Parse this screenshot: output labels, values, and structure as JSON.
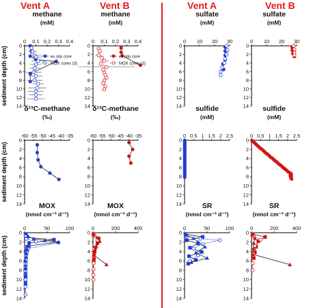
{
  "headers": {
    "vent_a_left": "Vent A",
    "vent_b_left": "Vent B",
    "vent_a_right": "Vent A",
    "vent_b_right": "Vent B"
  },
  "colors": {
    "vent_a": "#1f3fcf",
    "vent_b": "#d41414",
    "divider": "#e21b1b",
    "bars": "#666666"
  },
  "ylabel": "sediment depth (cm)",
  "chart_data": [
    {
      "id": "ch-methane-a",
      "type": "line",
      "title": "methane",
      "units": "(mM)",
      "xlim": [
        0,
        0.4
      ],
      "xticks": [
        "0",
        "0.1",
        "0.2",
        "0.3",
        "0.4"
      ],
      "ylim": [
        0,
        14
      ],
      "yticks": [
        "0",
        "2",
        "4",
        "6",
        "8",
        "10",
        "12",
        "14"
      ],
      "color": "vent_a",
      "legend": [
        "ex situ core",
        "MOX cores (3)"
      ],
      "series": [
        {
          "name": "ex situ core",
          "style": "filled",
          "x": [
            0.05,
            0.06,
            0.05,
            0.1,
            0.28,
            0.05,
            0.05
          ],
          "y": [
            0,
            1.2,
            2.4,
            3.2,
            3.6,
            6.5,
            8.3
          ]
        },
        {
          "name": "MOX cores (3)",
          "style": "open",
          "x": [
            0.06,
            0.07,
            0.09,
            0.1,
            0.12,
            0.1,
            0.09,
            0.08,
            0.1,
            0.09,
            0.12,
            0.11,
            0.1,
            0.1,
            0.1
          ],
          "y": [
            0.5,
            1.3,
            2.2,
            2.6,
            3.5,
            4.3,
            5.2,
            6.1,
            7.0,
            8.0,
            8.8,
            9.8,
            10.6,
            11.4,
            12.3
          ],
          "err": [
            0.02,
            0.04,
            0.06,
            0.05,
            0.06,
            0.05,
            0.05,
            0.07,
            0.06,
            0.07,
            0.05,
            0.08,
            0.07,
            0.06,
            0.08
          ]
        }
      ]
    },
    {
      "id": "ch-methane-b",
      "type": "line",
      "title": "methane",
      "units": "(mM)",
      "xlim": [
        0,
        0.4
      ],
      "xticks": [
        "0",
        "0.1",
        "0.2",
        "0.3",
        "0.4"
      ],
      "ylim": [
        0,
        14
      ],
      "yticks": [
        "0",
        "2",
        "4",
        "6",
        "8",
        "10",
        "12",
        "14"
      ],
      "color": "vent_b",
      "legend": [
        "ex situ core",
        "MOX cores (3)"
      ],
      "series": [
        {
          "name": "ex situ core",
          "style": "filled",
          "x": [
            0.25,
            0.25,
            0.26,
            0.42
          ],
          "y": [
            0.5,
            1.5,
            2.3,
            4.5
          ]
        },
        {
          "name": "MOX cores (3)",
          "style": "open",
          "x": [
            0.05,
            0.06,
            0.05,
            0.08,
            0.1,
            0.07,
            0.12,
            0.09,
            0.1,
            0.11,
            0.12,
            0.1,
            0.09,
            0.11,
            0.1
          ],
          "y": [
            0.6,
            1.2,
            2.2,
            2.8,
            3.5,
            4.2,
            4.9,
            5.5,
            6.2,
            6.8,
            7.4,
            8.0,
            8.7,
            9.4,
            10.1
          ],
          "err": [
            0,
            0,
            0.03,
            0,
            0.04,
            0,
            0.25,
            0,
            0,
            0,
            0,
            0,
            0,
            0,
            0
          ]
        }
      ]
    },
    {
      "id": "ch-sulfate-a",
      "type": "line",
      "title": "sulfate",
      "units": "(mM)",
      "xlim": [
        0,
        30
      ],
      "xticks": [
        "0",
        "10",
        "20",
        "30"
      ],
      "ylim": [
        0,
        14
      ],
      "yticks": [
        "0",
        "2",
        "4",
        "6",
        "8",
        "10",
        "12",
        "14"
      ],
      "color": "vent_a",
      "series": [
        {
          "name": "",
          "style": "filled",
          "x": [
            27,
            27,
            27,
            27,
            25.5,
            26
          ],
          "y": [
            0.3,
            1.2,
            2.2,
            3.2,
            4.2,
            5.5
          ]
        },
        {
          "name": "",
          "style": "open",
          "x": [
            28,
            28.5,
            28,
            27,
            26.5,
            25,
            24,
            24
          ],
          "y": [
            0,
            1,
            2,
            3,
            4,
            5,
            6,
            6.8
          ]
        }
      ]
    },
    {
      "id": "ch-sulfate-b",
      "type": "line",
      "title": "sulfate",
      "units": "(mM)",
      "xlim": [
        0,
        30
      ],
      "xticks": [
        "0",
        "10",
        "20",
        "30"
      ],
      "ylim": [
        0,
        14
      ],
      "yticks": [
        "0",
        "2",
        "4",
        "6",
        "8",
        "10",
        "12",
        "14"
      ],
      "color": "vent_b",
      "series": [
        {
          "name": "",
          "style": "filled",
          "x": [
            27,
            27,
            27.5,
            28.5
          ],
          "y": [
            0.3,
            1.0,
            1.8,
            2.5
          ]
        },
        {
          "name": "",
          "style": "open",
          "x": [
            28,
            28.5,
            28.5,
            28.5
          ],
          "y": [
            0,
            0.8,
            1.6,
            2.2
          ]
        }
      ]
    },
    {
      "id": "ch-d13c-a",
      "type": "line",
      "title": "δ¹³C-methane",
      "units": "(‰)",
      "xlim": [
        -60,
        -35
      ],
      "xticks": [
        "-60",
        "-55",
        "-50",
        "-45",
        "-40",
        "-35"
      ],
      "ylim": [
        0,
        14
      ],
      "yticks": [
        "0",
        "2",
        "4",
        "6",
        "8",
        "10",
        "12",
        "14"
      ],
      "color": "vent_a",
      "series": [
        {
          "name": "",
          "style": "filled",
          "x": [
            -53,
            -53,
            -52.5,
            -51,
            -46,
            -41
          ],
          "y": [
            1,
            2.7,
            4.3,
            5.8,
            7.2,
            8.6
          ]
        }
      ]
    },
    {
      "id": "ch-d13c-b",
      "type": "line",
      "title": "δ¹³C-methane",
      "units": "(‰)",
      "xlim": [
        -60,
        -35
      ],
      "xticks": [
        "-60",
        "-55",
        "-50",
        "-45",
        "-40",
        "-35"
      ],
      "ylim": [
        0,
        14
      ],
      "yticks": [
        "0",
        "2",
        "4",
        "6",
        "8",
        "10",
        "12",
        "14"
      ],
      "color": "vent_b",
      "series": [
        {
          "name": "",
          "style": "filled",
          "x": [
            -40,
            -38,
            -40,
            -39
          ],
          "y": [
            0.5,
            2.0,
            3.5,
            5.0
          ]
        }
      ]
    },
    {
      "id": "ch-sulfide-a",
      "type": "line",
      "title": "sulfide",
      "units": "(mM)",
      "xlim": [
        0,
        2.5
      ],
      "xticks": [
        "0",
        "0.5",
        "1",
        "1.5",
        "2",
        "2.5"
      ],
      "ylim": [
        0,
        14
      ],
      "yticks": [
        "0",
        "2",
        "4",
        "6",
        "8",
        "10",
        "12",
        "14"
      ],
      "color": "vent_a",
      "series": [
        {
          "name": "",
          "style": "filled",
          "x": [
            0.01,
            0.01,
            0.01,
            0.01,
            0.01,
            0.01,
            0.01,
            0.01,
            0.01,
            0.01,
            0.01,
            0.01,
            0.01,
            0.01,
            0.01,
            0.01,
            0.01,
            0.01,
            0.01,
            0.01,
            0.01,
            0.01,
            0.01,
            0.01,
            0.01,
            0.01,
            0.01,
            0.01
          ],
          "y": [
            0,
            0.3,
            0.6,
            0.9,
            1.2,
            1.5,
            1.8,
            2.1,
            2.4,
            2.7,
            3.0,
            3.3,
            3.6,
            3.9,
            4.2,
            4.5,
            4.8,
            5.1,
            5.4,
            5.7,
            6.0,
            6.3,
            6.6,
            6.9,
            7.2,
            7.5,
            7.8,
            8.1
          ]
        }
      ]
    },
    {
      "id": "ch-sulfide-b",
      "type": "line",
      "title": "sulfide",
      "units": "(mM)",
      "xlim": [
        0,
        2.5
      ],
      "xticks": [
        "0",
        "0.5",
        "1",
        "1.5",
        "2",
        "2.5"
      ],
      "ylim": [
        0,
        14
      ],
      "yticks": [
        "0",
        "2",
        "4",
        "6",
        "8",
        "10",
        "12",
        "14"
      ],
      "color": "vent_b",
      "series": [
        {
          "name": "",
          "style": "filled",
          "x": [
            0.02,
            0.1,
            0.18,
            0.26,
            0.34,
            0.42,
            0.5,
            0.58,
            0.66,
            0.74,
            0.82,
            0.9,
            0.98,
            1.06,
            1.14,
            1.22,
            1.3,
            1.38,
            1.46,
            1.54,
            1.62,
            1.7,
            1.78,
            1.86,
            1.94,
            2.02,
            2.1,
            2.18,
            2.2,
            2.15,
            2.2,
            2.18,
            2.2,
            2.22
          ],
          "y": [
            0,
            0.3,
            0.6,
            0.9,
            1.2,
            1.5,
            1.8,
            2.0,
            2.3,
            2.6,
            2.9,
            3.1,
            3.4,
            3.7,
            3.9,
            4.2,
            4.5,
            4.7,
            5.0,
            5.3,
            5.5,
            5.8,
            6.1,
            6.3,
            6.6,
            6.9,
            7.1,
            7.3,
            7.6,
            7.8,
            8.0,
            8.2,
            8.4,
            8.5
          ]
        }
      ]
    },
    {
      "id": "ch-mox-a",
      "type": "line",
      "title": "MOX",
      "units": "(nmol cm⁻³ d⁻¹)",
      "xlim": [
        0,
        100
      ],
      "xticks": [
        "0",
        "50",
        "100"
      ],
      "ylim": [
        0,
        14
      ],
      "yticks": [
        "0",
        "2",
        "4",
        "6",
        "8",
        "10",
        "12",
        "14"
      ],
      "color": "vent_a",
      "series": [
        {
          "name": "",
          "style": "filled-square",
          "x": [
            3,
            5,
            65,
            10,
            6,
            4,
            3,
            3,
            2,
            2,
            2,
            2,
            2,
            2,
            2
          ],
          "y": [
            0.3,
            1.0,
            1.5,
            2.2,
            3.0,
            3.8,
            4.6,
            5.4,
            6.2,
            7.0,
            7.8,
            8.6,
            9.4,
            10.2,
            11.0
          ]
        },
        {
          "name": "",
          "style": "open",
          "x": [
            2,
            4,
            25,
            75,
            8,
            5,
            3,
            3,
            2,
            2,
            2,
            2,
            2,
            2,
            2
          ],
          "y": [
            0.6,
            1.3,
            1.9,
            2.1,
            3.4,
            4.2,
            5.0,
            5.8,
            6.6,
            7.4,
            8.2,
            9.0,
            10.0,
            11.5,
            13.2
          ]
        },
        {
          "name": "",
          "style": "filled-triangle",
          "x": [
            2,
            8,
            20,
            45,
            75,
            10,
            6,
            4,
            3,
            2,
            2,
            2
          ],
          "y": [
            0.2,
            0.8,
            1.3,
            1.6,
            2.0,
            2.8,
            3.6,
            4.4,
            5.2,
            6.0,
            7.5,
            9.0
          ]
        }
      ]
    },
    {
      "id": "ch-mox-b",
      "type": "line",
      "title": "MOX",
      "units": "(nmol cm⁻³ d⁻¹)",
      "xlim": [
        0,
        400
      ],
      "xticks": [
        "0",
        "200",
        "400"
      ],
      "ylim": [
        0,
        14
      ],
      "yticks": [
        "0",
        "2",
        "4",
        "6",
        "8",
        "10",
        "12",
        "14"
      ],
      "color": "vent_b",
      "series": [
        {
          "name": "",
          "style": "filled-square",
          "x": [
            5,
            50,
            40,
            20,
            15,
            10,
            8,
            6
          ],
          "y": [
            0.3,
            1.2,
            2.2,
            3.2,
            4.0,
            4.8,
            5.6,
            6.3
          ]
        },
        {
          "name": "",
          "style": "open",
          "x": [
            20,
            40,
            10,
            8,
            6,
            5,
            4,
            4
          ],
          "y": [
            0.8,
            1.6,
            3.5,
            5.0,
            6.5,
            7.8,
            9.0,
            10.0
          ]
        },
        {
          "name": "",
          "style": "filled-triangle",
          "x": [
            5,
            60,
            30,
            15,
            10,
            120
          ],
          "y": [
            0.4,
            1.8,
            2.8,
            3.6,
            4.8,
            6.8
          ]
        }
      ]
    },
    {
      "id": "ch-sr-a",
      "type": "line",
      "title": "SR",
      "units": "(nmol cm⁻³ d⁻¹)",
      "xlim": [
        0,
        100
      ],
      "xticks": [
        "0",
        "50",
        "100"
      ],
      "ylim": [
        0,
        14
      ],
      "yticks": [
        "0",
        "2",
        "4",
        "6",
        "8",
        "10",
        "12",
        "14"
      ],
      "color": "vent_a",
      "series": [
        {
          "name": "",
          "style": "filled-square",
          "x": [
            2,
            40,
            5,
            30,
            12,
            38,
            10,
            25,
            8
          ],
          "y": [
            0.3,
            0.9,
            1.6,
            2.3,
            3.2,
            4.1,
            5.0,
            5.8,
            6.6
          ]
        },
        {
          "name": "",
          "style": "open",
          "x": [
            5,
            35,
            78,
            40,
            20,
            30,
            12
          ],
          "y": [
            0.8,
            1.3,
            1.6,
            2.4,
            3.4,
            4.8,
            6.0
          ]
        },
        {
          "name": "",
          "style": "filled-triangle",
          "x": [
            3,
            20,
            30,
            45,
            25,
            50,
            15
          ],
          "y": [
            0.5,
            1.2,
            2.0,
            3.0,
            4.3,
            5.4,
            6.3
          ]
        }
      ]
    },
    {
      "id": "ch-sr-b",
      "type": "line",
      "title": "SR",
      "units": "(nmol cm⁻³ d⁻¹)",
      "xlim": [
        0,
        400
      ],
      "xticks": [
        "0",
        "200",
        "400"
      ],
      "ylim": [
        0,
        14
      ],
      "yticks": [
        "0",
        "2",
        "4",
        "6",
        "8",
        "10",
        "12",
        "14"
      ],
      "color": "vent_b",
      "series": [
        {
          "name": "",
          "style": "filled-square",
          "x": [
            10,
            120,
            60,
            40,
            30,
            20
          ],
          "y": [
            0.3,
            0.9,
            1.8,
            3.0,
            4.2,
            5.4
          ]
        },
        {
          "name": "",
          "style": "open",
          "x": [
            20,
            80,
            30,
            15,
            10,
            10
          ],
          "y": [
            0.8,
            1.5,
            2.8,
            4.5,
            6.5,
            8.0
          ]
        },
        {
          "name": "",
          "style": "filled-triangle",
          "x": [
            5,
            30,
            20,
            15,
            10,
            340
          ],
          "y": [
            0.4,
            1.2,
            2.2,
            3.4,
            4.6,
            6.8
          ]
        }
      ]
    }
  ]
}
